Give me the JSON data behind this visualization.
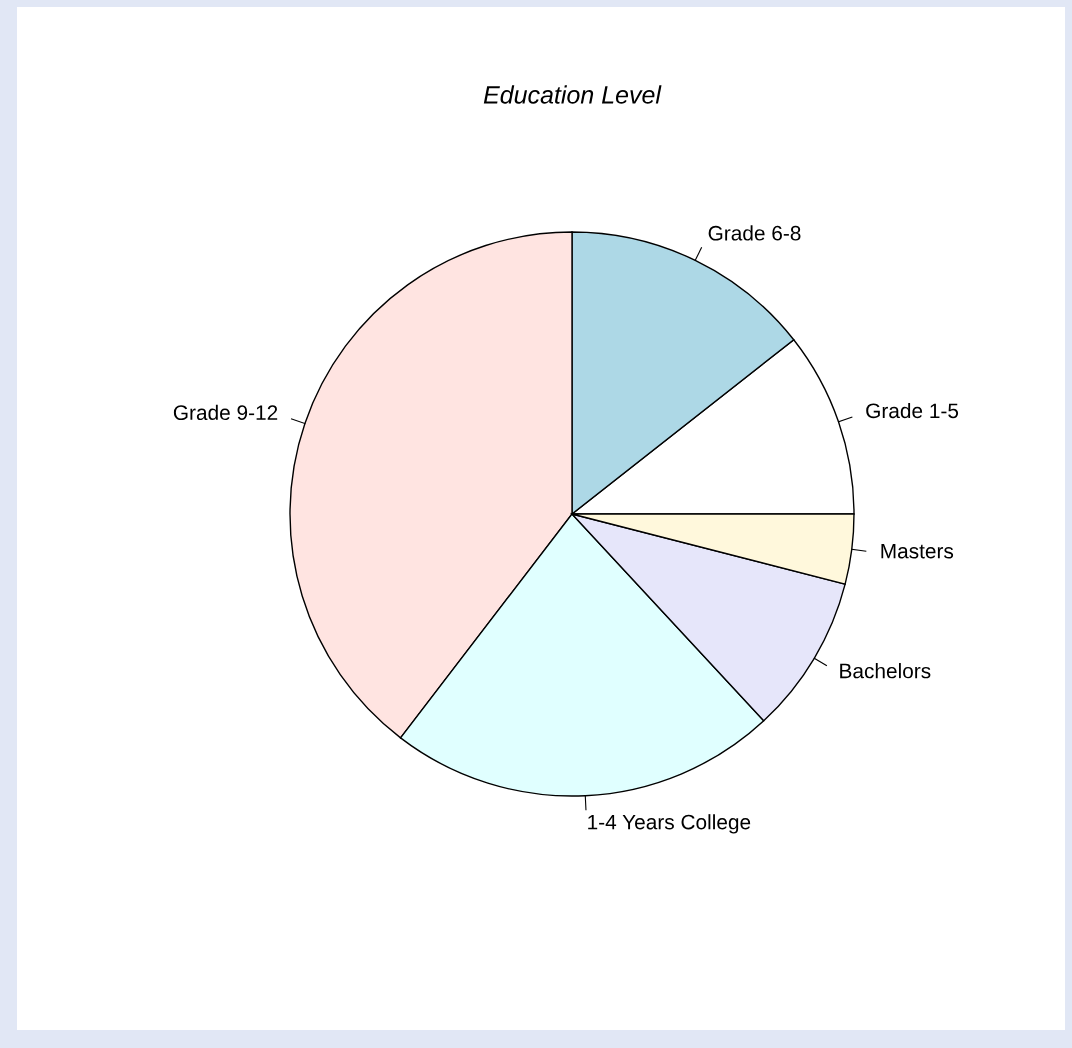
{
  "chart_data": {
    "type": "pie",
    "title": "Education Level",
    "categories": [
      "Grade 1-5",
      "Grade 6-8",
      "Grade 9-12",
      "1-4 Years College",
      "Bachelors",
      "Masters"
    ],
    "values": [
      10.6,
      14.4,
      39.6,
      22.3,
      9.1,
      4.0
    ],
    "colors": [
      "#ffffff",
      "#add8e6",
      "#ffe4e1",
      "#e0ffff",
      "#e6e6fa",
      "#fff8dc"
    ]
  }
}
